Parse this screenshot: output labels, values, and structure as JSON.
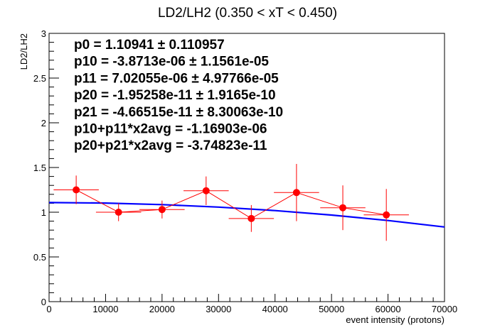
{
  "chart_data": {
    "type": "scatter",
    "title": "LD2/LH2 (0.350 < xT < 0.450)",
    "xlabel": "event intensity (protons)",
    "ylabel": "LD2/LH2",
    "xlim": [
      0,
      70000
    ],
    "ylim": [
      0,
      3
    ],
    "x_ticks": [
      0,
      10000,
      20000,
      30000,
      40000,
      50000,
      60000,
      70000
    ],
    "x_tick_labels": [
      "0",
      "10000",
      "20000",
      "30000",
      "40000",
      "50000",
      "60000",
      "70000"
    ],
    "y_ticks": [
      0,
      0.5,
      1,
      1.5,
      2,
      2.5,
      3
    ],
    "y_tick_labels": [
      "0",
      "0.5",
      "1",
      "1.5",
      "2",
      "2.5",
      "3"
    ],
    "grid": false,
    "marker_color": "#ff0000",
    "fit_color": "#0000ff",
    "points": [
      {
        "x": 4800,
        "y": 1.25,
        "xerr": 4000,
        "yerr": 0.16
      },
      {
        "x": 12300,
        "y": 1.0,
        "xerr": 4000,
        "yerr": 0.1
      },
      {
        "x": 20000,
        "y": 1.03,
        "xerr": 4000,
        "yerr": 0.1
      },
      {
        "x": 27800,
        "y": 1.24,
        "xerr": 4000,
        "yerr": 0.16
      },
      {
        "x": 35800,
        "y": 0.93,
        "xerr": 4000,
        "yerr": 0.15
      },
      {
        "x": 43800,
        "y": 1.22,
        "xerr": 4000,
        "yerr": 0.32
      },
      {
        "x": 52000,
        "y": 1.05,
        "xerr": 4000,
        "yerr": 0.25
      },
      {
        "x": 59700,
        "y": 0.97,
        "xerr": 4000,
        "yerr": 0.29
      }
    ],
    "fit_curve": {
      "x": [
        0,
        10000,
        20000,
        30000,
        40000,
        50000,
        60000,
        70000
      ],
      "y": [
        1.108,
        1.102,
        1.085,
        1.057,
        1.018,
        0.968,
        0.907,
        0.835
      ]
    },
    "annotations": [
      "p0 = 1.10941 ± 0.110957",
      "p10 = -3.8713e-06 ± 1.1561e-05",
      "p11 = 7.02055e-06 ± 4.97766e-05",
      "p20 = -1.95258e-11 ± 1.9165e-10",
      "p21 = -4.66515e-11 ± 8.30063e-10",
      "p10+p11*x2avg = -1.16903e-06",
      "p20+p21*x2avg = -3.74823e-11"
    ]
  }
}
